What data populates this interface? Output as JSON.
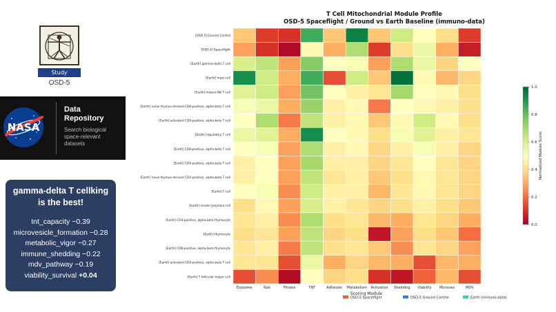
{
  "study": {
    "badge_label": "Study",
    "id": "OSD-5",
    "logo_icon": "vitruvian-man-icon"
  },
  "repository": {
    "logo_icon": "nasa-meatball-icon",
    "title": "Data Repository",
    "description": "Search biological space-relevant datasets"
  },
  "insight": {
    "headline": "gamma-delta T cellking is the best!",
    "items": [
      {
        "label": "tnt_capacity",
        "value": "−0.39",
        "strong": false
      },
      {
        "label": "microvesicle_formation",
        "value": "−0.28",
        "strong": false
      },
      {
        "label": "metabolic_vigor",
        "value": "−0.27",
        "strong": false
      },
      {
        "label": "immune_shedding",
        "value": "−0.22",
        "strong": false
      },
      {
        "label": "mdv_pathway",
        "value": "−0.19",
        "strong": false
      },
      {
        "label": "viability_survival",
        "value": "+0.04",
        "strong": true
      }
    ]
  },
  "chart_data": {
    "type": "heatmap",
    "title": "T Cell Mitochondrial Module Profile",
    "subtitle": "OSD-5 Spaceflight / Ground vs Earth Baseline (immuno-data)",
    "xlabel": "Scoring Module",
    "colorbar_label": "Normalized Module Score",
    "color_range": [
      0.0,
      1.0
    ],
    "colorbar_ticks": [
      0.0,
      0.2,
      0.4,
      0.6,
      0.8,
      1.0
    ],
    "colormap": [
      "#a50026",
      "#d73027",
      "#f46d43",
      "#fdae61",
      "#fee08b",
      "#ffffbf",
      "#d9ef8b",
      "#a6d96a",
      "#66bd63",
      "#1a9850",
      "#006837"
    ],
    "columns": [
      "Exosome",
      "Rab",
      "Fitness",
      "TNT",
      "Adhesion",
      "Metabolism",
      "Activation",
      "Shedding",
      "Viability",
      "Microves",
      "MDV"
    ],
    "rows": [
      "[OSD-5] Ground Control",
      "[OSD-5] Spaceflight",
      "[Earth] gamma-delta T cell",
      "[Earth] mast cell",
      "[Earth] mature NK T cell",
      "[Earth] naive thymus-derived CD8-positive, alpha-beta T cell",
      "[Earth] activated CD8-positive, alpha-beta T cell",
      "[Earth] regulatory T cell",
      "[Earth] CD8-positive, alpha-beta T cell",
      "[Earth] CD4-positive, alpha-beta T cell",
      "[Earth] naive thymus-derived CD4-positive, alpha-beta T cell",
      "[Earth] T cell",
      "[Earth] innate lymphoid cell",
      "[Earth] CD4-positive, alpha-beta thymocyte",
      "[Earth] thymocyte",
      "[Earth] CD8-positive, alpha-beta thymocyte",
      "[Earth] activated CD4-positive, alpha-beta T cell",
      "[Earth] T follicular helper cell"
    ],
    "values": [
      [
        0.35,
        0.12,
        0.1,
        0.85,
        0.35,
        0.95,
        0.35,
        0.62,
        0.5,
        0.4,
        0.12
      ],
      [
        0.28,
        0.1,
        0.02,
        0.48,
        0.3,
        0.68,
        0.12,
        0.4,
        0.55,
        0.3,
        0.06
      ],
      [
        0.6,
        0.65,
        0.28,
        0.75,
        0.5,
        0.52,
        0.28,
        0.68,
        0.55,
        0.38,
        0.5
      ],
      [
        0.92,
        0.62,
        0.3,
        0.85,
        0.15,
        0.62,
        0.35,
        0.98,
        0.48,
        0.32,
        0.38
      ],
      [
        0.58,
        0.62,
        0.28,
        0.78,
        0.5,
        0.45,
        0.42,
        0.7,
        0.5,
        0.48,
        0.4
      ],
      [
        0.52,
        0.55,
        0.3,
        0.72,
        0.45,
        0.48,
        0.22,
        0.5,
        0.48,
        0.45,
        0.4
      ],
      [
        0.5,
        0.68,
        0.22,
        0.65,
        0.45,
        0.48,
        0.35,
        0.48,
        0.62,
        0.48,
        0.4
      ],
      [
        0.55,
        0.58,
        0.3,
        0.92,
        0.5,
        0.48,
        0.4,
        0.52,
        0.58,
        0.45,
        0.42
      ],
      [
        0.5,
        0.52,
        0.28,
        0.68,
        0.45,
        0.48,
        0.38,
        0.45,
        0.52,
        0.45,
        0.38
      ],
      [
        0.45,
        0.5,
        0.28,
        0.7,
        0.45,
        0.45,
        0.38,
        0.42,
        0.5,
        0.42,
        0.38
      ],
      [
        0.45,
        0.5,
        0.28,
        0.65,
        0.42,
        0.45,
        0.35,
        0.4,
        0.48,
        0.42,
        0.38
      ],
      [
        0.5,
        0.52,
        0.25,
        0.62,
        0.45,
        0.45,
        0.32,
        0.42,
        0.48,
        0.42,
        0.38
      ],
      [
        0.4,
        0.48,
        0.28,
        0.6,
        0.45,
        0.42,
        0.38,
        0.4,
        0.45,
        0.4,
        0.35
      ],
      [
        0.42,
        0.45,
        0.25,
        0.68,
        0.4,
        0.42,
        0.32,
        0.3,
        0.42,
        0.38,
        0.3
      ],
      [
        0.4,
        0.42,
        0.28,
        0.65,
        0.38,
        0.4,
        0.05,
        0.28,
        0.4,
        0.35,
        0.2
      ],
      [
        0.42,
        0.45,
        0.22,
        0.65,
        0.4,
        0.42,
        0.35,
        0.25,
        0.42,
        0.38,
        0.28
      ],
      [
        0.42,
        0.42,
        0.15,
        0.55,
        0.3,
        0.38,
        0.32,
        0.3,
        0.15,
        0.32,
        0.3
      ],
      [
        0.15,
        0.25,
        0.03,
        0.5,
        0.38,
        0.4,
        0.1,
        0.05,
        0.18,
        0.32,
        0.15
      ]
    ],
    "legend": {
      "placement": "bottom-right",
      "entries": [
        {
          "label": "OSD-5 Spaceflight",
          "color": "#e4622f"
        },
        {
          "label": "OSD-5 Ground Control",
          "color": "#3c7dd9"
        },
        {
          "label": "Earth (immuno-data)",
          "color": "#3bd68c"
        }
      ]
    },
    "grid": true
  }
}
